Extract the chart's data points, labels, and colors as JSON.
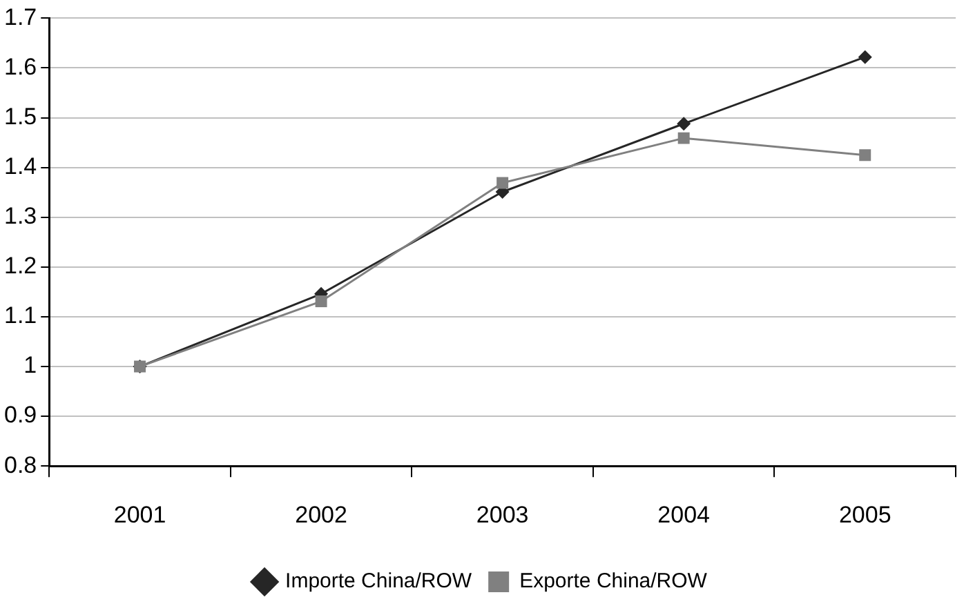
{
  "chart_data": {
    "type": "line",
    "categories": [
      "2001",
      "2002",
      "2003",
      "2004",
      "2005"
    ],
    "series": [
      {
        "name": "Importe China/ROW",
        "color": "#262626",
        "marker": "diamond",
        "values": [
          1.0,
          1.146,
          1.351,
          1.488,
          1.622
        ]
      },
      {
        "name": "Exporte China/ROW",
        "color": "#808080",
        "marker": "square",
        "values": [
          1.0,
          1.131,
          1.369,
          1.459,
          1.425
        ]
      }
    ],
    "ylim": [
      0.8,
      1.7
    ],
    "yticks": [
      0.8,
      0.9,
      1,
      1.1,
      1.2,
      1.3,
      1.4,
      1.5,
      1.6,
      1.7
    ],
    "grid": "y",
    "legend": "bottom",
    "line_style": "solid"
  }
}
